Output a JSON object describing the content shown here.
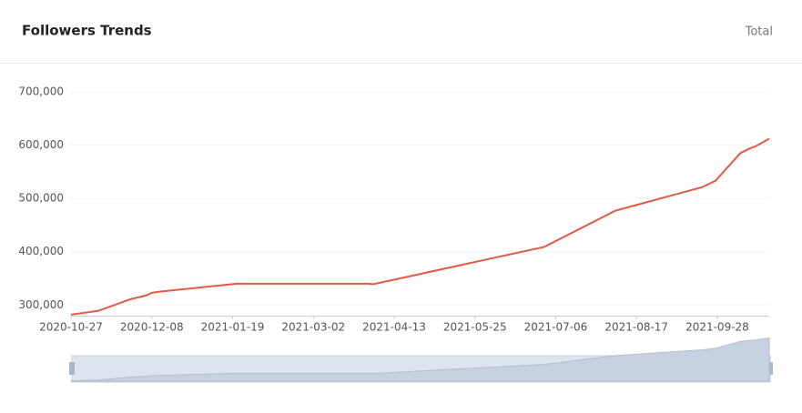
{
  "header": {
    "title": "Followers Trends",
    "mode": "Total"
  },
  "chart_data": {
    "type": "line",
    "x": [
      "2020-10-27",
      "2020-11-10",
      "2020-11-14",
      "2020-11-27",
      "2020-12-05",
      "2020-12-08",
      "2020-12-12",
      "2021-01-21",
      "2021-02-02",
      "2021-03-31",
      "2021-04-02",
      "2021-06-30",
      "2021-08-06",
      "2021-09-20",
      "2021-09-27",
      "2021-10-10",
      "2021-10-15",
      "2021-10-18",
      "2021-10-25"
    ],
    "series": [
      {
        "name": "Followers",
        "color": "#e15a45",
        "values": [
          282000,
          289000,
          294000,
          311000,
          318000,
          323000,
          325000,
          340000,
          340000,
          340000,
          339000,
          409000,
          477000,
          521000,
          533000,
          585000,
          594000,
          598000,
          612000
        ]
      }
    ],
    "xlim": [
      "2020-10-27",
      "2021-10-25"
    ],
    "xticks": [
      "2020-10-27",
      "2020-12-08",
      "2021-01-19",
      "2021-03-02",
      "2021-04-13",
      "2021-05-25",
      "2021-07-06",
      "2021-08-17",
      "2021-09-28"
    ],
    "ylim": [
      280000,
      700000
    ],
    "yticks": [
      {
        "value": 300000,
        "label": "300,000"
      },
      {
        "value": 400000,
        "label": "400,000"
      },
      {
        "value": 500000,
        "label": "500,000"
      },
      {
        "value": 600000,
        "label": "600,000"
      },
      {
        "value": 700000,
        "label": "700,000"
      }
    ],
    "grid": true
  }
}
